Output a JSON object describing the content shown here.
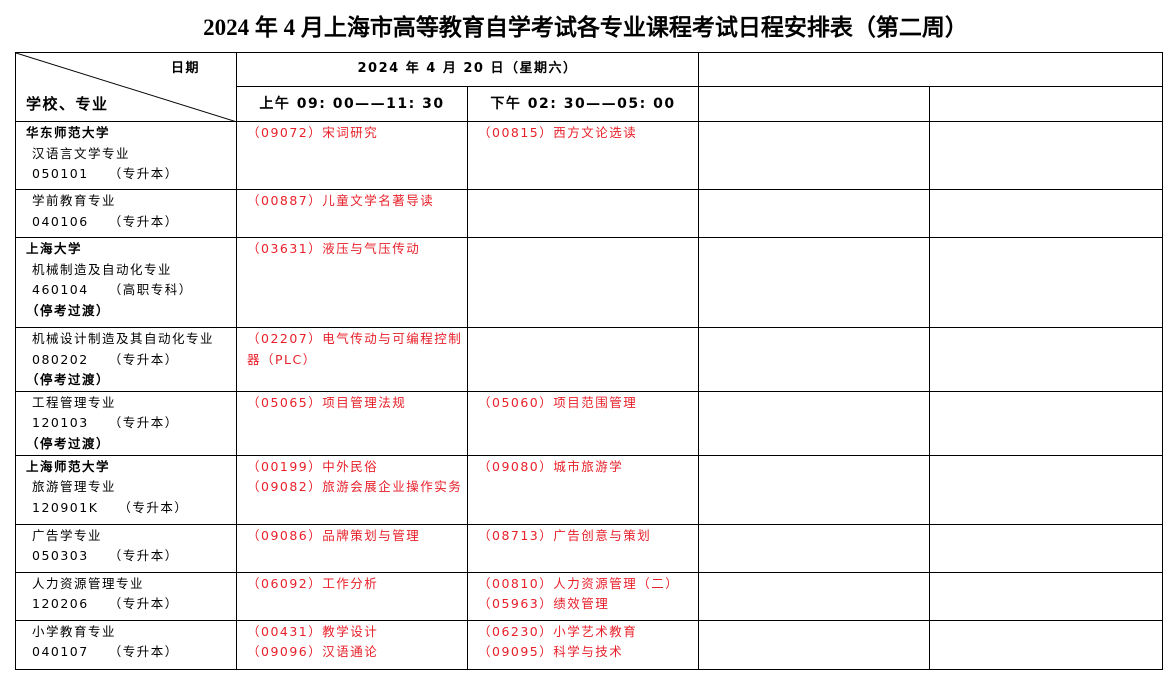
{
  "title": "2024 年 4 月上海市高等教育自学考试各专业课程考试日程安排表（第二周）",
  "header": {
    "date_label": "日期",
    "school_label": "学校、专业",
    "date": "2024 年 4 月 20 日（星期六）",
    "morning": "上午 09: 00——11: 30",
    "afternoon": "下午 02: 30——05: 00"
  },
  "rows": [
    {
      "school": "华东师范大学",
      "major": "汉语言文学专业",
      "code": "050101",
      "level": "（专升本）",
      "am": [
        "（09072）宋词研究"
      ],
      "pm": [
        "（00815）西方文论选读"
      ]
    },
    {
      "major": "学前教育专业",
      "code": "040106",
      "level": "（专升本）",
      "am": [
        "（00887）儿童文学名著导读"
      ],
      "pm": []
    },
    {
      "school": "上海大学",
      "major": "机械制造及自动化专业",
      "code": "460104",
      "level": "（高职专科）",
      "note": "（停考过渡）",
      "am": [
        "（03631）液压与气压传动"
      ],
      "pm": []
    },
    {
      "major": "机械设计制造及其自动化专业",
      "code": "080202",
      "level": "（专升本）",
      "note": "（停考过渡）",
      "am": [
        "（02207）电气传动与可编程控制器（PLC）"
      ],
      "pm": []
    },
    {
      "major": "工程管理专业",
      "code": "120103",
      "level": "（专升本）",
      "note": "（停考过渡）",
      "am": [
        "（05065）项目管理法规"
      ],
      "pm": [
        "（05060）项目范围管理"
      ]
    },
    {
      "school": "上海师范大学",
      "major": "旅游管理专业",
      "code": "120901K",
      "level": "（专升本）",
      "am": [
        "（00199）中外民俗",
        "（09082）旅游会展企业操作实务"
      ],
      "pm": [
        "（09080）城市旅游学"
      ]
    },
    {
      "major": "广告学专业",
      "code": "050303",
      "level": "（专升本）",
      "am": [
        "（09086）品牌策划与管理"
      ],
      "pm": [
        "（08713）广告创意与策划"
      ]
    },
    {
      "major": "人力资源管理专业",
      "code": "120206",
      "level": "（专升本）",
      "am": [
        "（06092）工作分析"
      ],
      "pm": [
        "（00810）人力资源管理（二）",
        "（05963）绩效管理"
      ]
    },
    {
      "major": "小学教育专业",
      "code": "040107",
      "level": "（专升本）",
      "am": [
        "（00431）教学设计",
        "（09096）汉语通论"
      ],
      "pm": [
        "（06230）小学艺术教育",
        "（09095）科学与技术"
      ]
    }
  ]
}
